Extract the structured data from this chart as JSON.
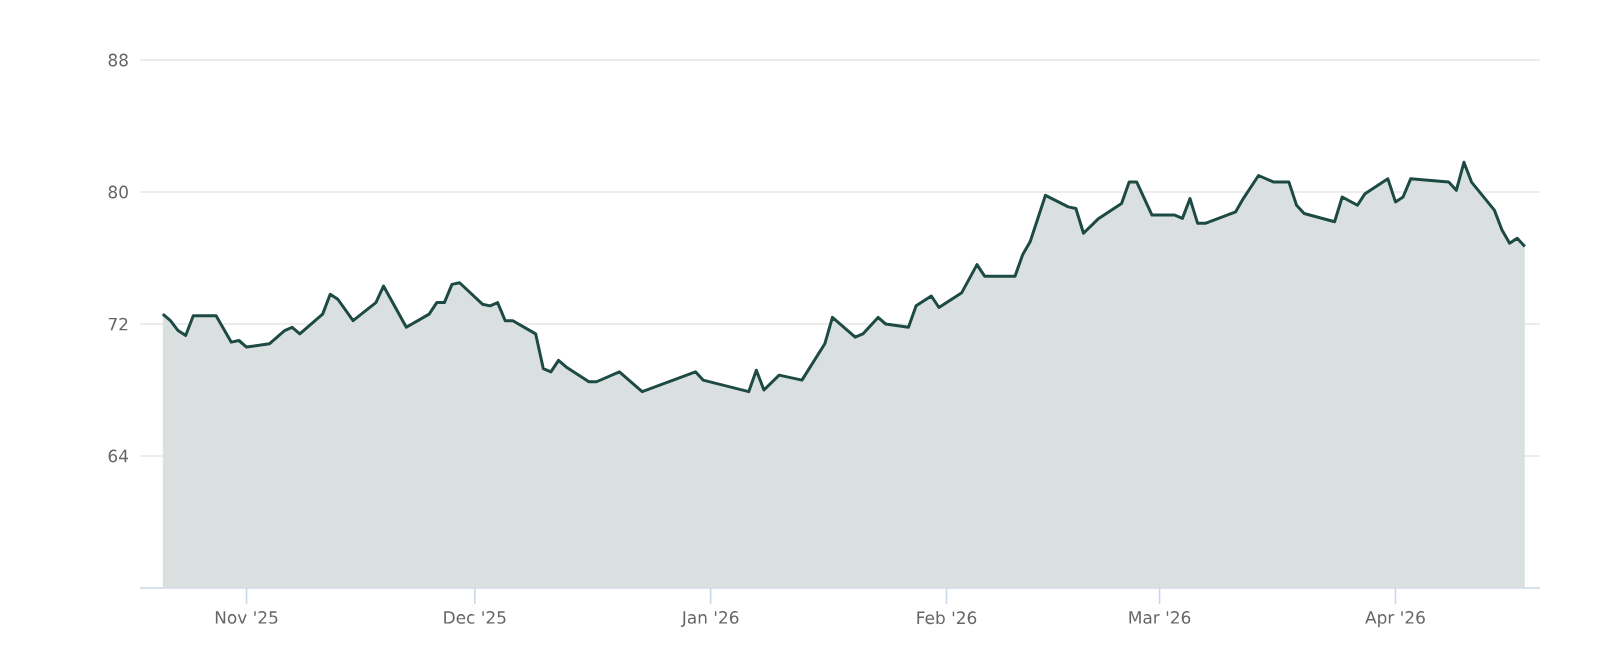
{
  "chart_data": {
    "type": "area",
    "x": [
      "2025-10-21",
      "2025-10-22",
      "2025-10-23",
      "2025-10-24",
      "2025-10-25",
      "2025-10-28",
      "2025-10-30",
      "2025-10-31",
      "2025-11-01",
      "2025-11-04",
      "2025-11-06",
      "2025-11-07",
      "2025-11-08",
      "2025-11-11",
      "2025-11-12",
      "2025-11-13",
      "2025-11-15",
      "2025-11-18",
      "2025-11-19",
      "2025-11-22",
      "2025-11-25",
      "2025-11-26",
      "2025-11-27",
      "2025-11-28",
      "2025-11-29",
      "2025-12-02",
      "2025-12-03",
      "2025-12-04",
      "2025-12-05",
      "2025-12-06",
      "2025-12-09",
      "2025-12-10",
      "2025-12-11",
      "2025-12-12",
      "2025-12-13",
      "2025-12-16",
      "2025-12-17",
      "2025-12-20",
      "2025-12-23",
      "2025-12-30",
      "2025-12-31",
      "2026-01-06",
      "2026-01-07",
      "2026-01-08",
      "2026-01-10",
      "2026-01-13",
      "2026-01-16",
      "2026-01-17",
      "2026-01-20",
      "2026-01-21",
      "2026-01-23",
      "2026-01-24",
      "2026-01-27",
      "2026-01-28",
      "2026-01-30",
      "2026-01-31",
      "2026-02-03",
      "2026-02-05",
      "2026-02-06",
      "2026-02-10",
      "2026-02-11",
      "2026-02-12",
      "2026-02-14",
      "2026-02-17",
      "2026-02-18",
      "2026-02-19",
      "2026-02-21",
      "2026-02-24",
      "2026-02-25",
      "2026-02-26",
      "2026-02-28",
      "2026-03-03",
      "2026-03-04",
      "2026-03-05",
      "2026-03-06",
      "2026-03-07",
      "2026-03-11",
      "2026-03-12",
      "2026-03-14",
      "2026-03-16",
      "2026-03-18",
      "2026-03-19",
      "2026-03-20",
      "2026-03-24",
      "2026-03-25",
      "2026-03-27",
      "2026-03-28",
      "2026-03-31",
      "2026-04-01",
      "2026-04-02",
      "2026-04-03",
      "2026-04-08",
      "2026-04-09",
      "2026-04-10",
      "2026-04-11",
      "2026-04-14",
      "2026-04-15",
      "2026-04-16",
      "2026-04-17",
      "2026-04-18"
    ],
    "values": [
      72.6,
      72.2,
      71.6,
      71.3,
      72.5,
      72.5,
      70.9,
      71.0,
      70.6,
      70.8,
      71.6,
      71.8,
      71.4,
      72.6,
      73.8,
      73.5,
      72.2,
      73.3,
      74.3,
      71.8,
      72.6,
      73.3,
      73.3,
      74.4,
      74.5,
      73.2,
      73.1,
      73.3,
      72.2,
      72.2,
      71.4,
      69.3,
      69.1,
      69.8,
      69.4,
      68.5,
      68.5,
      69.1,
      67.9,
      69.1,
      68.6,
      67.9,
      69.2,
      68.0,
      68.9,
      68.6,
      70.8,
      72.4,
      71.2,
      71.4,
      72.4,
      72.0,
      71.8,
      73.1,
      73.7,
      73.0,
      73.9,
      75.6,
      74.9,
      74.9,
      76.2,
      77.0,
      79.8,
      79.1,
      79.0,
      77.5,
      78.4,
      79.3,
      80.6,
      80.6,
      78.6,
      78.6,
      78.4,
      79.6,
      78.1,
      78.1,
      78.8,
      79.6,
      81.0,
      80.6,
      80.6,
      79.2,
      78.7,
      78.2,
      79.7,
      79.2,
      79.9,
      80.8,
      79.4,
      79.7,
      80.8,
      80.6,
      80.1,
      81.8,
      80.6,
      78.9,
      77.7,
      76.9,
      77.2,
      76.7
    ],
    "color": "#1e4a44",
    "xlim": [
      "2025-10-18",
      "2026-04-20"
    ],
    "xticks": [
      {
        "value": "2025-11-01",
        "label": "Nov '25"
      },
      {
        "value": "2025-12-01",
        "label": "Dec '25"
      },
      {
        "value": "2026-01-01",
        "label": "Jan '26"
      },
      {
        "value": "2026-02-01",
        "label": "Feb '26"
      },
      {
        "value": "2026-03-01",
        "label": "Mar '26"
      },
      {
        "value": "2026-04-01",
        "label": "Apr '26"
      }
    ],
    "ylim": [
      56,
      88
    ],
    "yticks": [
      64,
      72,
      80,
      88
    ],
    "grid": "y"
  }
}
